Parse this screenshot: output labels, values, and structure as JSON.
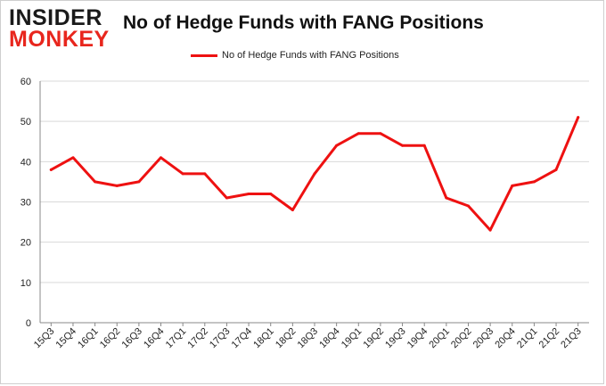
{
  "logo": {
    "line1": "INSIDER",
    "line2": "MONKEY"
  },
  "chart_data": {
    "type": "line",
    "title": "No of Hedge Funds with FANG Positions",
    "xlabel": "",
    "ylabel": "",
    "categories": [
      "15Q3",
      "15Q4",
      "16Q1",
      "16Q2",
      "16Q3",
      "16Q4",
      "17Q1",
      "17Q2",
      "17Q3",
      "17Q4",
      "18Q1",
      "18Q2",
      "18Q3",
      "18Q4",
      "19Q1",
      "19Q2",
      "19Q3",
      "19Q4",
      "20Q1",
      "20Q2",
      "20Q3",
      "20Q4",
      "21Q1",
      "21Q2",
      "21Q3"
    ],
    "series": [
      {
        "name": "No of Hedge Funds with FANG Positions",
        "color": "#ee1111",
        "values": [
          38,
          41,
          35,
          34,
          35,
          41,
          37,
          37,
          31,
          32,
          32,
          28,
          37,
          44,
          47,
          47,
          44,
          44,
          31,
          29,
          23,
          34,
          35,
          38,
          51
        ]
      }
    ],
    "ylim": [
      0,
      60
    ],
    "yticks": [
      0,
      10,
      20,
      30,
      40,
      50,
      60
    ],
    "grid": true,
    "legend_position": "top"
  }
}
